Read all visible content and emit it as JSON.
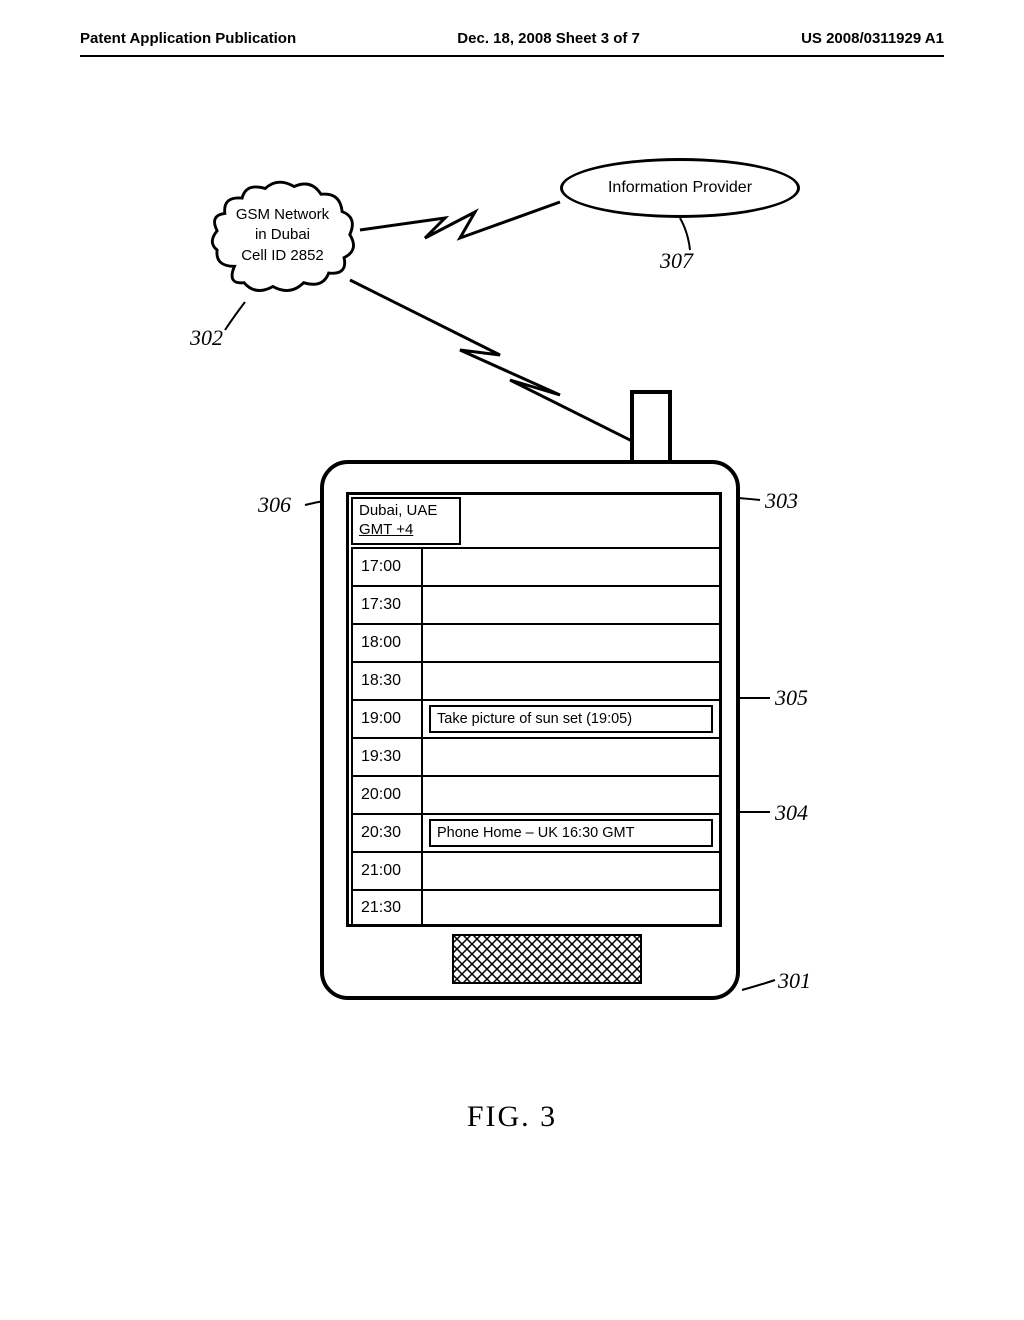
{
  "header": {
    "left": "Patent Application Publication",
    "center": "Dec. 18, 2008  Sheet 3 of 7",
    "right": "US 2008/0311929 A1"
  },
  "cloud": {
    "line1": "GSM Network",
    "line2": "in Dubai",
    "line3": "Cell ID 2852"
  },
  "oval": {
    "label": "Information Provider"
  },
  "refs": {
    "r302": "302",
    "r307": "307",
    "r306": "306",
    "r303": "303",
    "r305": "305",
    "r304": "304",
    "r301": "301"
  },
  "phone": {
    "location": {
      "line1": "Dubai, UAE",
      "line2": "GMT +4"
    },
    "times": [
      "17:00",
      "17:30",
      "18:00",
      "18:30",
      "19:00",
      "19:30",
      "20:00",
      "20:30",
      "21:00",
      "21:30"
    ],
    "events": {
      "4": "Take picture of sun set (19:05)",
      "7": "Phone Home – UK 16:30 GMT"
    }
  },
  "caption": "FIG. 3",
  "style": {
    "stroke": "#000000",
    "stroke_width": 3
  }
}
